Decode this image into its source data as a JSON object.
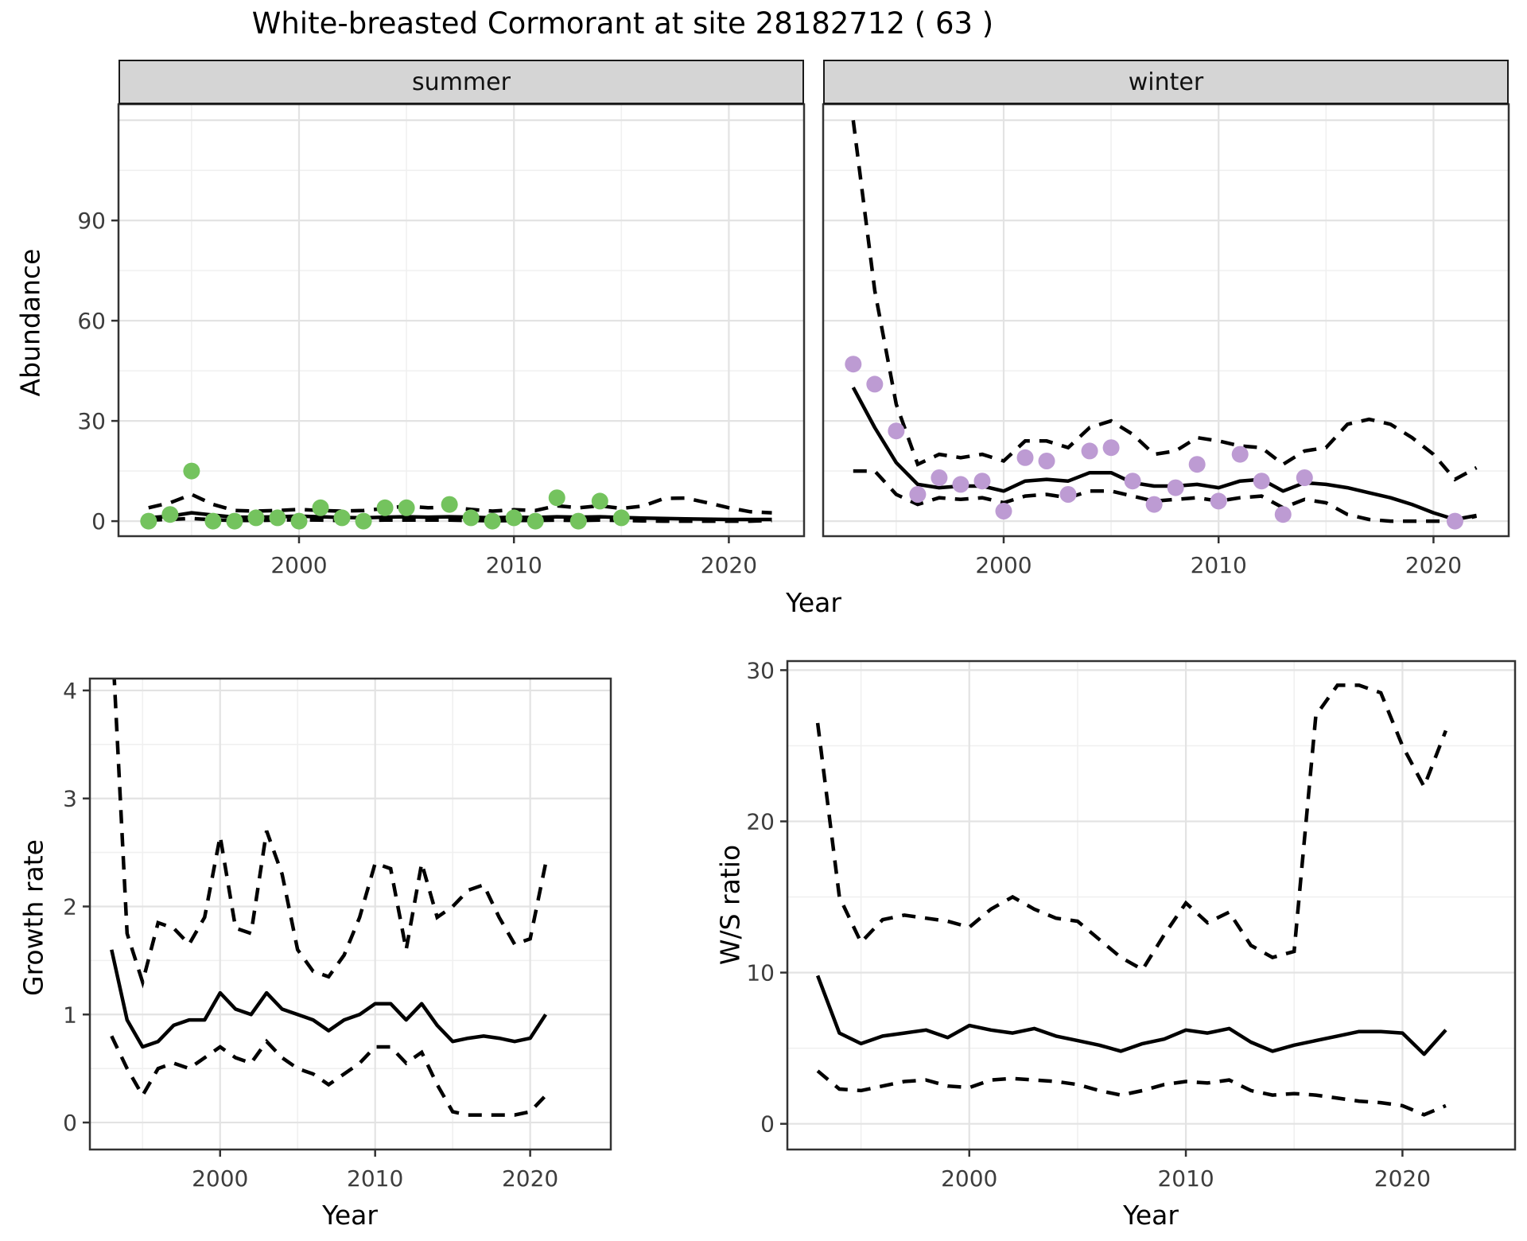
{
  "title": "White-breasted Cormorant at site 28182712 ( 63 )",
  "colors": {
    "summer_point": "#74c35e",
    "winter_point": "#bd9bd3",
    "line": "#000000",
    "grid_major": "#e3e3e3",
    "grid_minor": "#f0f0f0",
    "panel_border": "#333333",
    "tick_text": "#3d3d3d",
    "strip_bg": "#d5d5d5"
  },
  "facets": {
    "summer_label": "summer",
    "winter_label": "winter"
  },
  "axis_titles": {
    "abundance": "Abundance",
    "year_top": "Year",
    "growth": "Growth rate",
    "year_growth": "Year",
    "ws": "W/S ratio",
    "year_ws": "Year"
  },
  "chart_data": [
    {
      "id": "abundance-summer",
      "type": "scatter",
      "facet": "summer",
      "ylabel": "Abundance",
      "xlabel": "Year",
      "xlim": [
        1991.6,
        2023.5
      ],
      "ylim": [
        -4.5,
        124.8
      ],
      "xticks": [
        2000,
        2010,
        2020
      ],
      "xminor": [
        1995,
        2005,
        2015
      ],
      "yticks": [
        0,
        30,
        60,
        90
      ],
      "ymajor": [
        0,
        30,
        60,
        90,
        120
      ],
      "yminor": [
        15,
        45,
        75,
        105
      ],
      "point_color": "#74c35e",
      "points": {
        "years": [
          1993,
          1994,
          1995,
          1996,
          1997,
          1998,
          1999,
          2000,
          2001,
          2002,
          2003,
          2004,
          2005,
          2007,
          2008,
          2009,
          2010,
          2011,
          2012,
          2013,
          2014,
          2015
        ],
        "values": [
          0,
          2,
          15,
          0,
          0,
          1,
          1,
          0,
          4,
          1,
          0,
          4,
          4,
          5,
          1,
          0,
          1,
          0,
          7,
          0,
          6,
          1
        ]
      },
      "fit": {
        "years": [
          1993,
          1994,
          1995,
          1996,
          1997,
          1998,
          1999,
          2000,
          2001,
          2002,
          2003,
          2004,
          2005,
          2006,
          2007,
          2008,
          2009,
          2010,
          2011,
          2012,
          2013,
          2014,
          2015,
          2016,
          2017,
          2018,
          2019,
          2020,
          2021,
          2022
        ],
        "median": [
          1.0,
          1.5,
          2.5,
          1.8,
          1.2,
          1.2,
          1.3,
          1.5,
          1.3,
          1.1,
          1.0,
          1.2,
          1.3,
          1.2,
          1.3,
          1.2,
          1.0,
          1.2,
          1.1,
          1.3,
          1.2,
          1.3,
          1.1,
          0.9,
          0.8,
          0.7,
          0.6,
          0.5,
          0.5,
          0.5
        ],
        "upper": [
          4.0,
          5.5,
          8.0,
          5.0,
          3.2,
          3.0,
          3.2,
          3.5,
          3.2,
          3.0,
          3.2,
          3.8,
          4.5,
          4.0,
          4.2,
          3.5,
          3.0,
          3.4,
          3.2,
          4.6,
          4.0,
          4.6,
          3.8,
          4.5,
          6.8,
          6.9,
          5.5,
          4.0,
          2.8,
          2.5
        ],
        "lower": [
          0.3,
          0.5,
          0.8,
          0.4,
          0.2,
          0.2,
          0.3,
          0.4,
          0.3,
          0.2,
          0.2,
          0.3,
          0.3,
          0.3,
          0.3,
          0.2,
          0.1,
          0.2,
          0.2,
          0.3,
          0.2,
          0.3,
          0.2,
          0.1,
          0.0,
          0.0,
          0.0,
          0.0,
          0.0,
          0.2
        ]
      }
    },
    {
      "id": "abundance-winter",
      "type": "scatter",
      "facet": "winter",
      "ylabel": "Abundance",
      "xlabel": "Year",
      "xlim": [
        1991.6,
        2023.5
      ],
      "ylim": [
        -4.5,
        124.8
      ],
      "xticks": [
        2000,
        2010,
        2020
      ],
      "xminor": [
        1995,
        2005,
        2015
      ],
      "yticks": [
        0,
        30,
        60,
        90
      ],
      "ymajor": [
        0,
        30,
        60,
        90,
        120
      ],
      "yminor": [
        15,
        45,
        75,
        105
      ],
      "point_color": "#bd9bd3",
      "points": {
        "years": [
          1993,
          1994,
          1995,
          1996,
          1997,
          1998,
          1999,
          2000,
          2001,
          2002,
          2003,
          2004,
          2005,
          2006,
          2007,
          2008,
          2009,
          2010,
          2011,
          2012,
          2013,
          2014,
          2021
        ],
        "values": [
          47,
          41,
          27,
          8,
          13,
          11,
          12,
          3,
          19,
          18,
          8,
          21,
          22,
          12,
          5,
          10,
          17,
          6,
          20,
          12,
          2,
          13,
          0
        ]
      },
      "fit": {
        "years": [
          1993,
          1994,
          1995,
          1996,
          1997,
          1998,
          1999,
          2000,
          2001,
          2002,
          2003,
          2004,
          2005,
          2006,
          2007,
          2008,
          2009,
          2010,
          2011,
          2012,
          2013,
          2014,
          2015,
          2016,
          2017,
          2018,
          2019,
          2020,
          2021,
          2022
        ],
        "median": [
          40,
          28,
          17.5,
          11,
          10,
          10.5,
          10.5,
          9,
          12,
          12.5,
          12,
          14.5,
          14.5,
          11.5,
          10.5,
          10.5,
          11,
          10,
          12,
          12.5,
          9,
          11.5,
          11,
          10,
          8.5,
          7,
          5,
          2.5,
          0.5,
          1.7
        ],
        "upper": [
          120,
          69,
          35,
          17,
          20,
          19,
          20,
          18,
          24,
          24,
          22,
          28,
          30,
          26,
          20,
          21,
          25,
          24,
          22.5,
          22,
          17,
          21,
          22,
          29,
          30.5,
          29,
          25,
          20,
          12.5,
          16
        ],
        "lower": [
          15,
          15,
          8,
          5,
          7,
          6.5,
          7,
          5.5,
          7.5,
          8,
          7,
          9,
          9,
          7.5,
          6,
          6.5,
          7,
          6,
          7,
          7.5,
          4,
          6.5,
          5.5,
          2,
          0.5,
          0,
          0,
          0,
          0,
          1.5
        ]
      }
    },
    {
      "id": "growth-rate",
      "type": "line",
      "facet": null,
      "ylabel": "Growth rate",
      "xlabel": "Year",
      "xlim": [
        1991.6,
        2025.2
      ],
      "ylim": [
        -0.25,
        4.11
      ],
      "xticks": [
        2000,
        2010,
        2020
      ],
      "xminor": [
        1995,
        2005,
        2015
      ],
      "yticks": [
        0,
        1,
        2,
        3,
        4
      ],
      "ymajor": [
        0,
        1,
        2,
        3,
        4
      ],
      "yminor": [
        0.5,
        1.5,
        2.5,
        3.5
      ],
      "point_color": null,
      "points": {
        "years": [],
        "values": []
      },
      "fit": {
        "years": [
          1993,
          1994,
          1995,
          1996,
          1997,
          1998,
          1999,
          2000,
          2001,
          2002,
          2003,
          2004,
          2005,
          2006,
          2007,
          2008,
          2009,
          2010,
          2011,
          2012,
          2013,
          2014,
          2015,
          2016,
          2017,
          2018,
          2019,
          2020,
          2021
        ],
        "median": [
          1.6,
          0.95,
          0.7,
          0.75,
          0.9,
          0.95,
          0.95,
          1.2,
          1.05,
          1.0,
          1.2,
          1.05,
          1.0,
          0.95,
          0.85,
          0.95,
          1.0,
          1.1,
          1.1,
          0.95,
          1.1,
          0.9,
          0.75,
          0.78,
          0.8,
          0.78,
          0.75,
          0.78,
          1.0
        ],
        "upper": [
          4.6,
          1.75,
          1.3,
          1.85,
          1.8,
          1.65,
          1.9,
          2.65,
          1.8,
          1.75,
          2.7,
          2.3,
          1.6,
          1.4,
          1.35,
          1.55,
          1.9,
          2.4,
          2.35,
          1.6,
          2.4,
          1.9,
          2.0,
          2.15,
          2.2,
          1.9,
          1.65,
          1.7,
          2.4
        ],
        "lower": [
          0.8,
          0.5,
          0.25,
          0.5,
          0.55,
          0.5,
          0.6,
          0.7,
          0.6,
          0.55,
          0.75,
          0.6,
          0.5,
          0.45,
          0.35,
          0.45,
          0.55,
          0.7,
          0.7,
          0.55,
          0.65,
          0.35,
          0.1,
          0.07,
          0.07,
          0.07,
          0.07,
          0.1,
          0.25
        ]
      }
    },
    {
      "id": "ws-ratio",
      "type": "line",
      "facet": null,
      "ylabel": "W/S ratio",
      "xlabel": "Year",
      "xlim": [
        1991.6,
        2025.2
      ],
      "ylim": [
        -1.7,
        30.6
      ],
      "xticks": [
        2000,
        2010,
        2020
      ],
      "xminor": [
        1995,
        2005,
        2015
      ],
      "yticks": [
        0,
        10,
        20,
        30
      ],
      "ymajor": [
        0,
        10,
        20,
        30
      ],
      "yminor": [
        5,
        15,
        25
      ],
      "point_color": null,
      "points": {
        "years": [],
        "values": []
      },
      "fit": {
        "years": [
          1993,
          1994,
          1995,
          1996,
          1997,
          1998,
          1999,
          2000,
          2001,
          2002,
          2003,
          2004,
          2005,
          2006,
          2007,
          2008,
          2009,
          2010,
          2011,
          2012,
          2013,
          2014,
          2015,
          2016,
          2017,
          2018,
          2019,
          2020,
          2021,
          2022
        ],
        "median": [
          9.8,
          6.0,
          5.3,
          5.8,
          6.0,
          6.2,
          5.7,
          6.5,
          6.2,
          6.0,
          6.3,
          5.8,
          5.5,
          5.2,
          4.8,
          5.3,
          5.6,
          6.2,
          6.0,
          6.3,
          5.4,
          4.8,
          5.2,
          5.5,
          5.8,
          6.1,
          6.1,
          6.0,
          4.6,
          6.2
        ],
        "upper": [
          26.5,
          15,
          12,
          13.5,
          13.8,
          13.6,
          13.4,
          13,
          14.2,
          15,
          14.2,
          13.6,
          13.4,
          12.2,
          11,
          10.2,
          12.5,
          14.6,
          13.3,
          14,
          11.8,
          11,
          11.4,
          27,
          29,
          29,
          28.5,
          25,
          22.3,
          26
        ],
        "lower": [
          3.5,
          2.3,
          2.2,
          2.5,
          2.8,
          2.9,
          2.5,
          2.4,
          2.9,
          3.0,
          2.9,
          2.8,
          2.6,
          2.2,
          1.9,
          2.2,
          2.6,
          2.8,
          2.7,
          2.9,
          2.2,
          1.9,
          2.0,
          1.9,
          1.7,
          1.5,
          1.4,
          1.2,
          0.6,
          1.2
        ]
      }
    }
  ]
}
